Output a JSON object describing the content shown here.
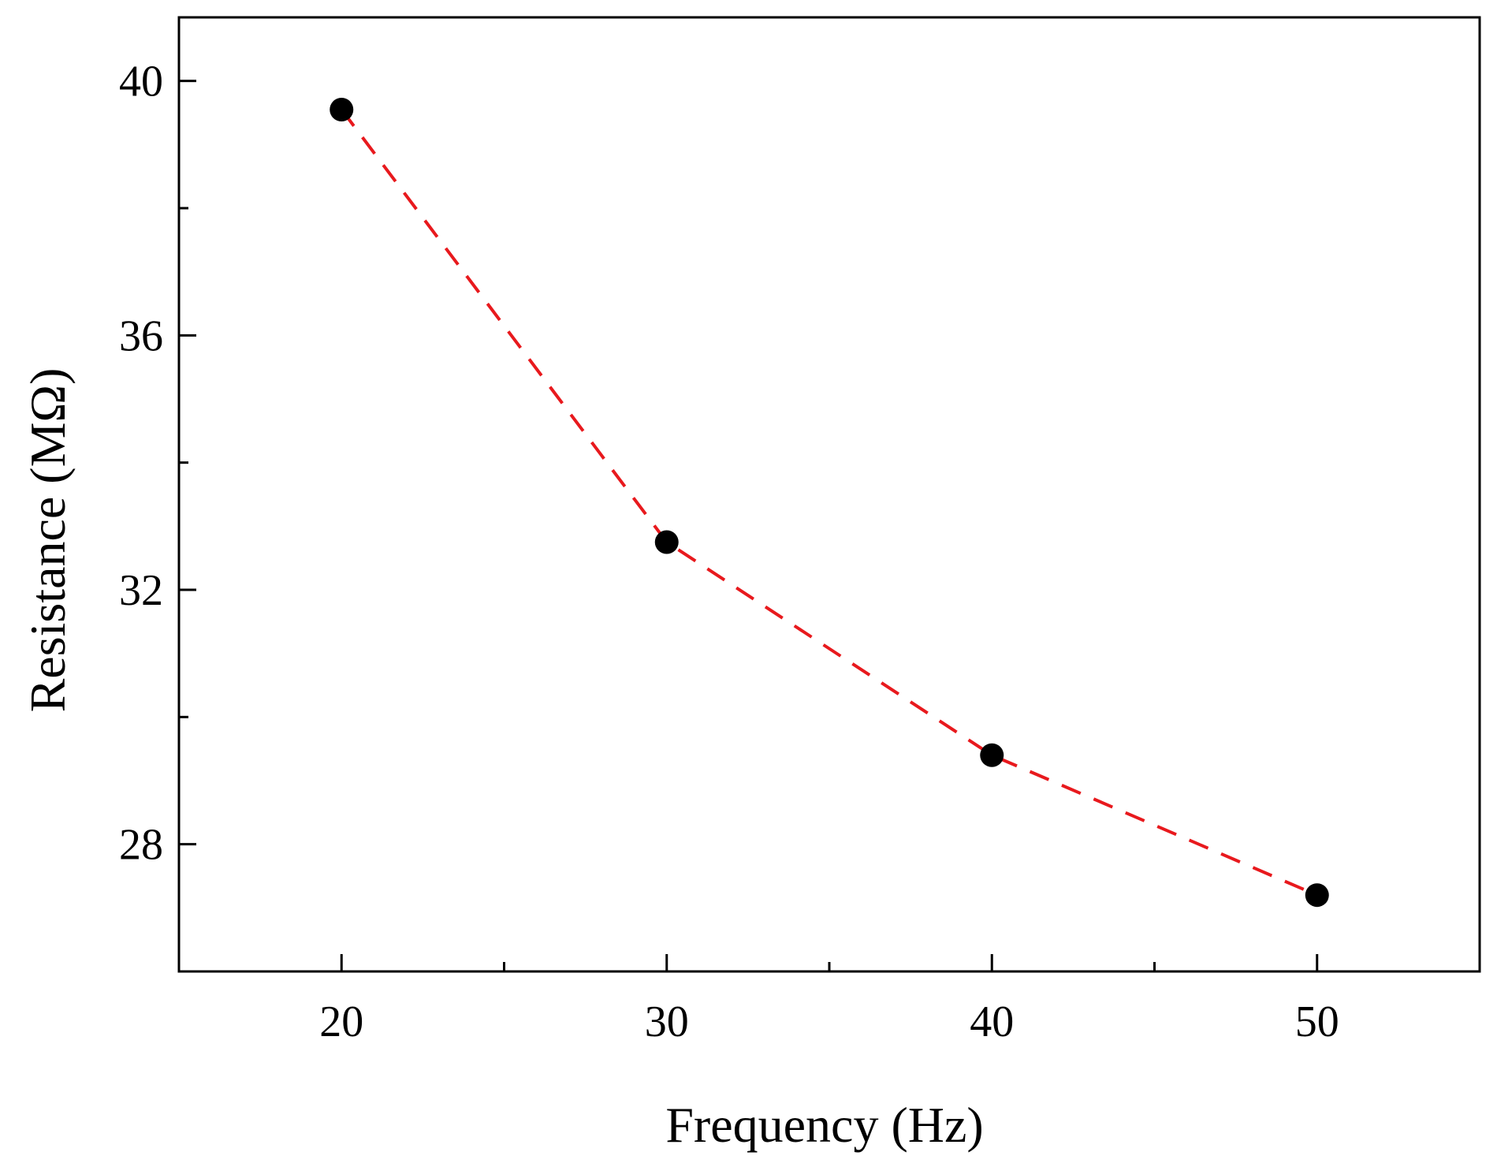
{
  "chart_data": {
    "type": "line",
    "xlabel": "Frequency (Hz)",
    "ylabel": "Resistance (MΩ)",
    "xlim": [
      15,
      55
    ],
    "ylim": [
      26,
      41
    ],
    "x_ticks": [
      20,
      30,
      40,
      50
    ],
    "x_minor_ticks": [
      25,
      35,
      45
    ],
    "y_ticks": [
      28,
      32,
      36,
      40
    ],
    "y_minor_ticks": [
      30,
      34,
      38
    ],
    "grid": false,
    "legend": "none",
    "series": [
      {
        "x": [
          20,
          30,
          40,
          50
        ],
        "y": [
          39.55,
          32.75,
          29.4,
          27.2
        ],
        "marker": "circle",
        "marker_color": "#000000",
        "line_style": "dashed",
        "line_color": "#e8191d"
      }
    ]
  }
}
